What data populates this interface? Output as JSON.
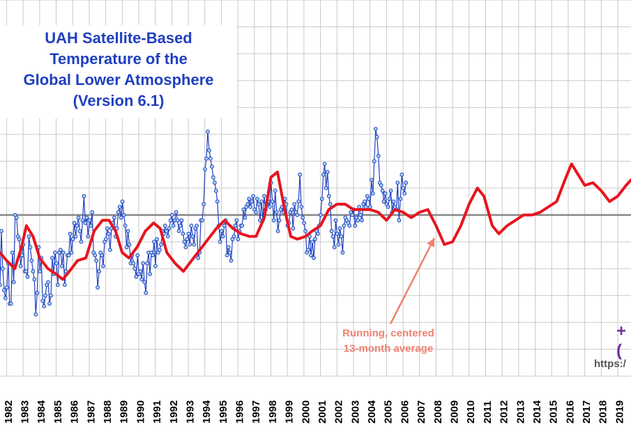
{
  "title_lines": [
    "UAH Satellite-Based",
    "Temperature of the",
    "Global Lower Atmosphere",
    "(Version 6.1)"
  ],
  "annotation_lines": [
    "Running, centered",
    "13-month average"
  ],
  "edge_value_text": "+(",
  "url_text": "https:/",
  "colors": {
    "monthly_line": "#1f3fbf",
    "monthly_marker_fill": "#aad4f0",
    "running_mean": "#e8141e",
    "annotation": "#f08070",
    "title": "#1f3fbf",
    "grid": "#c8c8c8",
    "zero_line": "#888888"
  },
  "chart_data": {
    "type": "line",
    "x_tick_labels": [
      "1982",
      "1983",
      "1984",
      "1985",
      "1986",
      "1987",
      "1988",
      "1989",
      "1990",
      "1991",
      "1992",
      "1993",
      "1994",
      "1995",
      "1996",
      "1997",
      "1998",
      "1999",
      "2000",
      "2001",
      "2002",
      "2003",
      "2004",
      "2005",
      "2006",
      "2007",
      "2008",
      "2009",
      "2010",
      "2011",
      "2012",
      "2013",
      "2014",
      "2015",
      "2016",
      "2017",
      "2018",
      "2019"
    ],
    "xlim": [
      1981.6,
      2019.8
    ],
    "ylim": [
      -0.6,
      0.8
    ],
    "zero_line": true,
    "grid": true,
    "series": [
      {
        "name": "Running, centered 13-month average",
        "style": "thick-line",
        "points": [
          [
            1981.6,
            -0.14
          ],
          [
            1982.0,
            -0.17
          ],
          [
            1982.5,
            -0.2
          ],
          [
            1982.9,
            -0.12
          ],
          [
            1983.2,
            -0.04
          ],
          [
            1983.6,
            -0.08
          ],
          [
            1984.0,
            -0.16
          ],
          [
            1984.5,
            -0.2
          ],
          [
            1985.0,
            -0.22
          ],
          [
            1985.4,
            -0.24
          ],
          [
            1985.8,
            -0.21
          ],
          [
            1986.3,
            -0.17
          ],
          [
            1986.8,
            -0.16
          ],
          [
            1987.3,
            -0.06
          ],
          [
            1987.8,
            -0.02
          ],
          [
            1988.2,
            -0.02
          ],
          [
            1988.6,
            -0.06
          ],
          [
            1989.0,
            -0.14
          ],
          [
            1989.4,
            -0.16
          ],
          [
            1989.9,
            -0.12
          ],
          [
            1990.4,
            -0.06
          ],
          [
            1990.9,
            -0.03
          ],
          [
            1991.3,
            -0.05
          ],
          [
            1991.7,
            -0.14
          ],
          [
            1992.2,
            -0.18
          ],
          [
            1992.7,
            -0.21
          ],
          [
            1993.2,
            -0.17
          ],
          [
            1993.7,
            -0.13
          ],
          [
            1994.2,
            -0.09
          ],
          [
            1994.7,
            -0.05
          ],
          [
            1995.2,
            -0.02
          ],
          [
            1995.7,
            -0.05
          ],
          [
            1996.2,
            -0.07
          ],
          [
            1996.7,
            -0.08
          ],
          [
            1997.1,
            -0.08
          ],
          [
            1997.6,
            -0.01
          ],
          [
            1998.0,
            0.14
          ],
          [
            1998.4,
            0.16
          ],
          [
            1998.8,
            0.03
          ],
          [
            1999.2,
            -0.08
          ],
          [
            1999.6,
            -0.09
          ],
          [
            2000.1,
            -0.08
          ],
          [
            2000.5,
            -0.06
          ],
          [
            2001.0,
            -0.04
          ],
          [
            2001.5,
            0.02
          ],
          [
            2002.0,
            0.04
          ],
          [
            2002.5,
            0.04
          ],
          [
            2003.0,
            0.02
          ],
          [
            2003.5,
            0.02
          ],
          [
            2004.0,
            0.02
          ],
          [
            2004.5,
            0.01
          ],
          [
            2005.0,
            -0.02
          ],
          [
            2005.5,
            0.02
          ],
          [
            2006.0,
            0.01
          ],
          [
            2006.5,
            -0.01
          ],
          [
            2007.0,
            0.01
          ],
          [
            2007.5,
            0.02
          ],
          [
            2008.0,
            -0.04
          ],
          [
            2008.5,
            -0.11
          ],
          [
            2009.0,
            -0.1
          ],
          [
            2009.5,
            -0.04
          ],
          [
            2010.0,
            0.04
          ],
          [
            2010.5,
            0.1
          ],
          [
            2010.9,
            0.07
          ],
          [
            2011.4,
            -0.04
          ],
          [
            2011.8,
            -0.07
          ],
          [
            2012.3,
            -0.04
          ],
          [
            2012.8,
            -0.02
          ],
          [
            2013.3,
            0.0
          ],
          [
            2013.8,
            0.0
          ],
          [
            2014.3,
            0.01
          ],
          [
            2014.8,
            0.03
          ],
          [
            2015.3,
            0.05
          ],
          [
            2015.8,
            0.13
          ],
          [
            2016.2,
            0.19
          ],
          [
            2016.6,
            0.15
          ],
          [
            2017.0,
            0.11
          ],
          [
            2017.5,
            0.12
          ],
          [
            2018.0,
            0.09
          ],
          [
            2018.5,
            0.05
          ],
          [
            2019.0,
            0.07
          ],
          [
            2019.5,
            0.11
          ],
          [
            2019.8,
            0.13
          ]
        ]
      },
      {
        "name": "monthly",
        "style": "thin-line-markers",
        "start": 1981.6,
        "step": 0.0833,
        "values": [
          -0.26,
          -0.06,
          -0.2,
          -0.28,
          -0.31,
          -0.27,
          -0.18,
          -0.33,
          -0.33,
          -0.14,
          -0.25,
          0.0,
          -0.01,
          -0.08,
          -0.09,
          -0.19,
          -0.15,
          -0.11,
          -0.21,
          -0.21,
          -0.23,
          -0.08,
          -0.12,
          -0.17,
          -0.21,
          -0.24,
          -0.37,
          -0.29,
          -0.12,
          -0.21,
          -0.16,
          -0.32,
          -0.34,
          -0.3,
          -0.26,
          -0.25,
          -0.33,
          -0.3,
          -0.16,
          -0.22,
          -0.14,
          -0.18,
          -0.26,
          -0.14,
          -0.13,
          -0.19,
          -0.14,
          -0.26,
          -0.21,
          -0.15,
          -0.15,
          -0.07,
          -0.14,
          -0.09,
          -0.03,
          -0.08,
          -0.04,
          -0.01,
          -0.06,
          -0.1,
          -0.02,
          0.07,
          -0.03,
          -0.01,
          -0.08,
          -0.02,
          -0.04,
          0.01,
          -0.14,
          -0.15,
          -0.17,
          -0.27,
          -0.21,
          -0.14,
          -0.15,
          -0.19,
          -0.1,
          -0.09,
          -0.05,
          -0.07,
          -0.13,
          -0.05,
          -0.03,
          -0.01,
          -0.08,
          -0.05,
          0.01,
          0.03,
          -0.01,
          0.05,
          0.0,
          -0.04,
          -0.12,
          -0.06,
          -0.11,
          -0.18,
          -0.15,
          -0.18,
          -0.2,
          -0.23,
          -0.15,
          -0.22,
          -0.21,
          -0.24,
          -0.18,
          -0.25,
          -0.29,
          -0.18,
          -0.14,
          -0.22,
          -0.14,
          -0.15,
          -0.1,
          -0.19,
          -0.09,
          -0.14,
          -0.13,
          -0.11,
          -0.06,
          -0.07,
          -0.04,
          -0.06,
          -0.08,
          -0.05,
          -0.02,
          0.0,
          -0.04,
          -0.02,
          0.01,
          -0.02,
          -0.06,
          -0.04,
          -0.02,
          -0.07,
          -0.1,
          -0.12,
          -0.09,
          -0.07,
          -0.11,
          -0.04,
          -0.08,
          -0.11,
          -0.05,
          -0.04,
          -0.16,
          -0.14,
          -0.02,
          -0.02,
          0.04,
          0.17,
          0.21,
          0.31,
          0.24,
          0.21,
          0.18,
          0.14,
          0.12,
          0.09,
          0.05,
          -0.04,
          -0.1,
          -0.06,
          -0.08,
          -0.04,
          -0.02,
          -0.15,
          -0.12,
          -0.14,
          -0.17,
          -0.09,
          -0.08,
          -0.04,
          -0.02,
          -0.09,
          -0.06,
          -0.04,
          -0.04,
          0.02,
          -0.01,
          0.03,
          0.04,
          0.06,
          0.03,
          0.05,
          0.07,
          0.02,
          0.01,
          0.06,
          0.04,
          -0.02,
          0.05,
          -0.02,
          0.07,
          0.02,
          0.04,
          0.05,
          0.03,
          0.12,
          0.05,
          -0.02,
          0.09,
          0.01,
          -0.06,
          -0.02,
          0.02,
          0.03,
          0.01,
          0.06,
          0.04,
          -0.04,
          -0.03,
          0.01,
          0.02,
          -0.05,
          0.04,
          0.01,
          0.0,
          0.05,
          0.15,
          0.03,
          -0.01,
          -0.03,
          -0.06,
          -0.14,
          -0.13,
          -0.08,
          -0.15,
          -0.1,
          -0.16,
          -0.09,
          -0.06,
          -0.07,
          -0.04,
          0.0,
          0.06,
          0.15,
          0.19,
          0.1,
          0.16,
          0.07,
          0.04,
          -0.06,
          -0.08,
          -0.12,
          -0.02,
          -0.07,
          -0.11,
          -0.05,
          -0.08,
          -0.14,
          -0.04,
          -0.01,
          -0.02,
          -0.03,
          -0.04,
          0.01,
          0.0,
          0.02,
          -0.04,
          -0.01,
          -0.02,
          0.03,
          0.0,
          -0.02,
          0.04,
          0.05,
          0.03,
          0.07,
          0.06,
          0.03,
          0.13,
          0.08,
          0.2,
          0.32,
          0.29,
          0.22,
          0.12,
          0.11,
          0.09,
          0.05,
          0.08,
          0.04,
          0.03,
          0.06,
          0.09,
          0.01,
          0.05,
          0.03,
          0.02,
          0.12,
          -0.02,
          0.06,
          0.15,
          0.1,
          0.08,
          0.12
        ]
      }
    ]
  }
}
